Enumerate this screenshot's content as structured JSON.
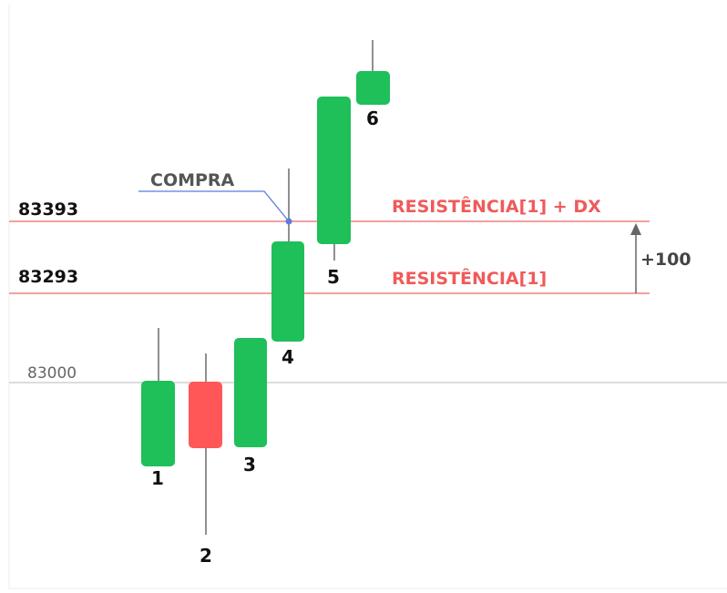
{
  "price_levels": [
    "83393",
    "83293",
    "83000"
  ],
  "level_notes": [
    "RESISTÊNCIA[1] + DX",
    "RESISTÊNCIA[1]"
  ],
  "entry": "COMPRA",
  "offset": "+100",
  "candles": [
    "1",
    "2",
    "3",
    "4",
    "5",
    "6"
  ]
}
